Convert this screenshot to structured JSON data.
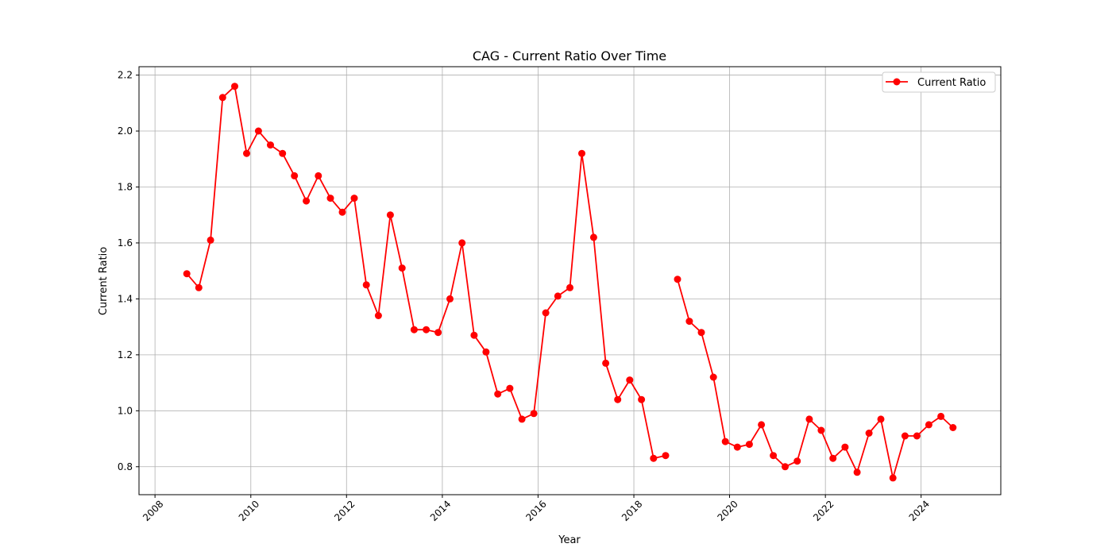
{
  "chart_data": {
    "type": "line",
    "title": "CAG - Current Ratio Over Time",
    "xlabel": "Year",
    "ylabel": "Current Ratio",
    "xlim": [
      "2007-09-01",
      "2025-08-31"
    ],
    "ylim": [
      0.7,
      2.23
    ],
    "x_ticks": [
      "2008",
      "2010",
      "2012",
      "2014",
      "2016",
      "2018",
      "2020",
      "2022",
      "2024"
    ],
    "y_ticks": [
      "0.8",
      "1.0",
      "1.2",
      "1.4",
      "1.6",
      "1.8",
      "2.0",
      "2.2"
    ],
    "grid": true,
    "legend_position": "upper right",
    "series": [
      {
        "name": "Current Ratio",
        "color": "#ff0000",
        "marker": "circle",
        "segments": [
          {
            "x": [
              "2008-08-31",
              "2008-11-30",
              "2009-02-28",
              "2009-05-31",
              "2009-08-31",
              "2009-11-30",
              "2010-02-28",
              "2010-05-31",
              "2010-08-31",
              "2010-11-30",
              "2011-02-28",
              "2011-05-31",
              "2011-08-31",
              "2011-11-30",
              "2012-02-29",
              "2012-05-31",
              "2012-08-31",
              "2012-11-30",
              "2013-02-28",
              "2013-05-31",
              "2013-08-31",
              "2013-11-30",
              "2014-02-28",
              "2014-05-31",
              "2014-08-31",
              "2014-11-30",
              "2015-02-28",
              "2015-05-31",
              "2015-08-31",
              "2015-11-30",
              "2016-02-29",
              "2016-05-31",
              "2016-08-31",
              "2016-11-30",
              "2017-02-28",
              "2017-05-31",
              "2017-08-31",
              "2017-11-30",
              "2018-02-28",
              "2018-05-31",
              "2018-08-31"
            ],
            "y": [
              1.49,
              1.44,
              1.61,
              2.12,
              2.16,
              1.92,
              2.0,
              1.95,
              1.92,
              1.84,
              1.75,
              1.84,
              1.76,
              1.71,
              1.76,
              1.45,
              1.34,
              1.7,
              1.51,
              1.29,
              1.29,
              1.28,
              1.4,
              1.6,
              1.27,
              1.21,
              1.06,
              1.08,
              0.97,
              0.99,
              1.35,
              1.41,
              1.44,
              1.92,
              1.62,
              1.17,
              1.04,
              1.11,
              1.04,
              0.83,
              0.84
            ]
          },
          {
            "x": [
              "2018-11-30",
              "2019-02-28",
              "2019-05-31",
              "2019-08-31",
              "2019-11-30",
              "2020-02-29",
              "2020-05-31",
              "2020-08-31",
              "2020-11-30",
              "2021-02-28",
              "2021-05-31",
              "2021-08-31",
              "2021-11-30",
              "2022-02-28",
              "2022-05-31",
              "2022-08-31",
              "2022-11-30",
              "2023-02-28",
              "2023-05-31",
              "2023-08-31",
              "2023-11-30",
              "2024-02-29",
              "2024-05-31",
              "2024-08-31"
            ],
            "y": [
              1.47,
              1.32,
              1.28,
              1.12,
              0.89,
              0.87,
              0.88,
              0.95,
              0.84,
              0.8,
              0.82,
              0.97,
              0.93,
              0.83,
              0.87,
              0.78,
              0.92,
              0.97,
              0.76,
              0.91,
              0.91,
              0.95,
              0.98,
              0.94
            ]
          }
        ]
      }
    ]
  }
}
